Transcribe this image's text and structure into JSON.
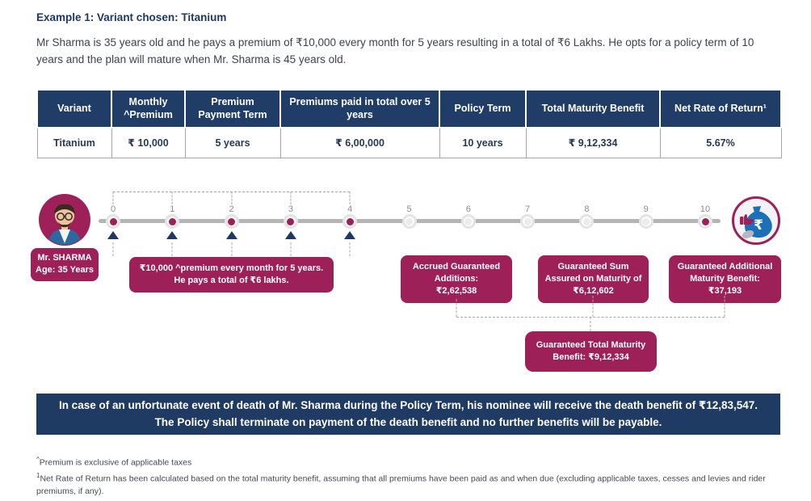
{
  "header": {
    "title": "Example 1: Variant chosen: Titanium",
    "description": "Mr Sharma is 35 years old and he pays a premium of ₹10,000 every month for 5 years resulting in a total of ₹6 Lakhs. He opts for a policy term of 10 years and the plan will mature when Mr. Sharma is 45 years old."
  },
  "table": {
    "headers": [
      "Variant",
      "Monthly ^Premium",
      "Premium Payment Term",
      "Premiums paid in total over 5 years",
      "Policy Term",
      "Total Maturity Benefit",
      "Net Rate of Return¹"
    ],
    "row": [
      "Titanium",
      "₹ 10,000",
      "5 years",
      "₹ 6,00,000",
      "10 years",
      "₹ 9,12,334",
      "5.67%"
    ]
  },
  "timeline": {
    "person": {
      "name": "Mr. SHARMA",
      "age": "Age: 35 Years"
    },
    "ticks": [
      {
        "label": "0",
        "filled": true,
        "premium": true
      },
      {
        "label": "1",
        "filled": true,
        "premium": true
      },
      {
        "label": "2",
        "filled": true,
        "premium": true
      },
      {
        "label": "3",
        "filled": true,
        "premium": true
      },
      {
        "label": "4",
        "filled": true,
        "premium": true
      },
      {
        "label": "5",
        "filled": false,
        "premium": false
      },
      {
        "label": "6",
        "filled": false,
        "premium": false
      },
      {
        "label": "7",
        "filled": false,
        "premium": false
      },
      {
        "label": "8",
        "filled": false,
        "premium": false
      },
      {
        "label": "9",
        "filled": false,
        "premium": false
      },
      {
        "label": "10",
        "filled": true,
        "premium": false
      }
    ],
    "callouts": {
      "premium": {
        "line1": "₹10,000 ^premium every month for 5 years.",
        "line2": "He pays a total of ₹6 lakhs."
      },
      "accrued": {
        "title": "Accrued Guaranteed Additions:",
        "amount": "₹2,62,538"
      },
      "sum_assured": {
        "title": "Guaranteed Sum Assured on Maturity of",
        "amount": "₹6,12,602"
      },
      "additional": {
        "title": "Guaranteed Additional Maturity Benefit:",
        "amount": "₹37,193"
      },
      "total": {
        "text": "Guaranteed Total Maturity Benefit: ₹9,12,334"
      }
    },
    "moneybag_icon": "rupee-moneybag-with-thumbs-up",
    "colors": {
      "maroon": "#9e2059",
      "navy": "#203d68",
      "line_gray": "#b5b5b5",
      "bag_blue": "#1c70b8"
    }
  },
  "banner": {
    "text": "In case of an unfortunate event of death of Mr. Sharma during the Policy Term, his nominee will receive the death benefit of ₹12,83,547. The Policy shall terminate on payment of the death benefit and no further benefits will be payable."
  },
  "footnotes": [
    {
      "marker": "^",
      "text": "Premium is exclusive of applicable taxes"
    },
    {
      "marker": "1",
      "text": "Net Rate of Return has been calculated based on the total maturity benefit, assuming that all premiums have been paid as and when due (excluding applicable taxes, cesses and levies and rider premiums, if any)."
    }
  ]
}
